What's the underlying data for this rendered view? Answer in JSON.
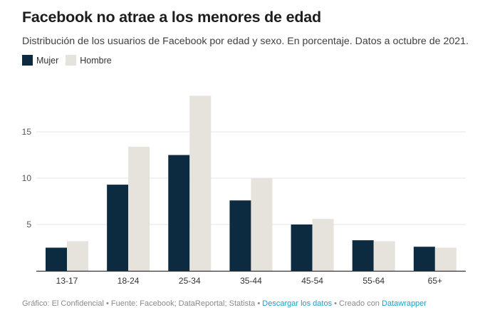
{
  "header": {
    "title": "Facebook no atrae a los menores de edad",
    "subtitle": "Distribución de los usuarios de Facebook por edad y sexo. En porcentaje. Datos a octubre de 2021."
  },
  "legend": {
    "mujer": "Mujer",
    "hombre": "Hombre"
  },
  "colors": {
    "mujer": "#0c2b40",
    "hombre": "#e6e3dc",
    "grid": "#e6e6e6",
    "axis": "#333333"
  },
  "chart_data": {
    "type": "bar",
    "categories": [
      "13-17",
      "18-24",
      "25-34",
      "35-44",
      "45-54",
      "55-64",
      "65+"
    ],
    "series": [
      {
        "name": "Mujer",
        "values": [
          2.5,
          9.3,
          12.5,
          7.6,
          5.0,
          3.3,
          2.6
        ]
      },
      {
        "name": "Hombre",
        "values": [
          3.2,
          13.4,
          18.9,
          10.0,
          5.6,
          3.2,
          2.5
        ]
      }
    ],
    "y_ticks": [
      5,
      10,
      15
    ],
    "ylim": [
      0,
      19.5
    ],
    "grid": true,
    "legend_position": "top-left"
  },
  "footer": {
    "credit": "Gráfico: El Confidencial • Fuente: Facebook; DataReportal; Statista • ",
    "download": "Descargar los datos",
    "created_sep": " • Creado con ",
    "tool": "Datawrapper"
  }
}
